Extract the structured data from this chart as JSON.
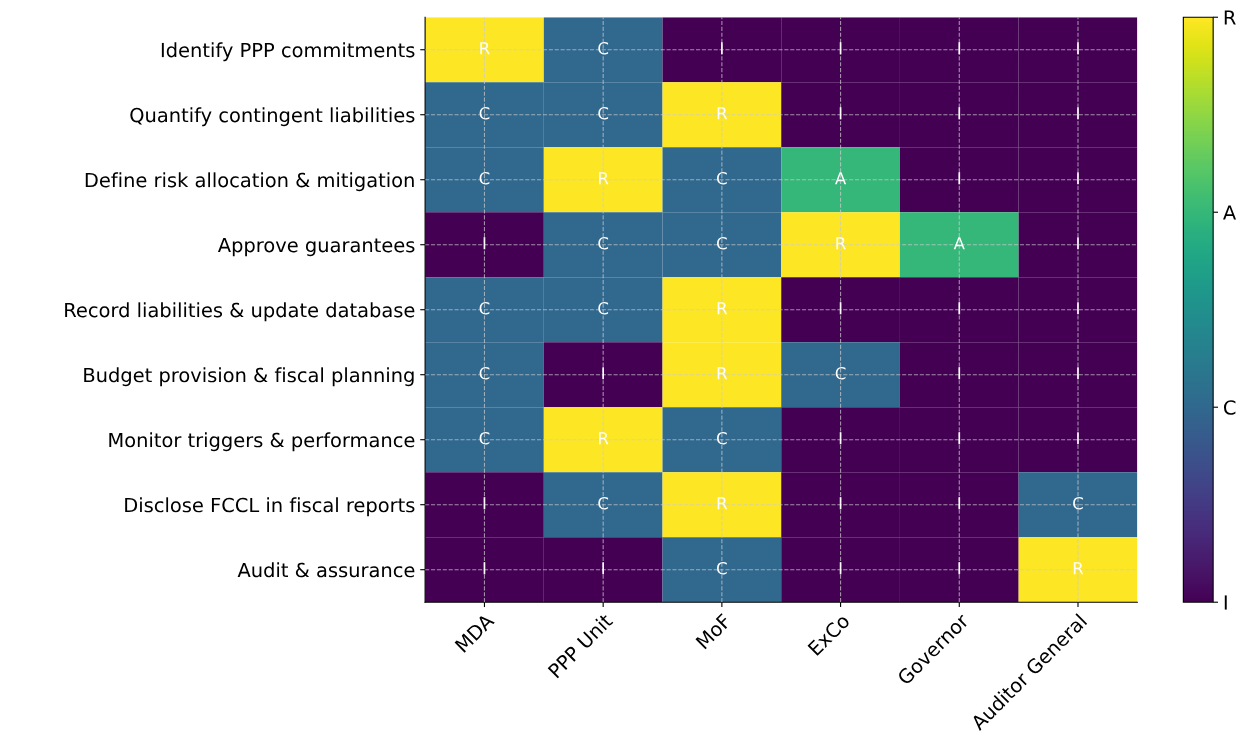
{
  "chart_data": {
    "type": "heatmap",
    "categories": [
      "MDA",
      "PPP Unit",
      "MoF",
      "ExCo",
      "Governor",
      "Auditor General"
    ],
    "y_categories": [
      "Identify PPP commitments",
      "Quantify contingent liabilities",
      "Define risk allocation & mitigation",
      "Approve guarantees",
      "Record liabilities & update database",
      "Budget provision & fiscal planning",
      "Monitor triggers & performance",
      "Disclose FCCL in fiscal reports",
      "Audit & assurance"
    ],
    "cells": [
      [
        3,
        1,
        0,
        0,
        0,
        0
      ],
      [
        1,
        1,
        3,
        0,
        0,
        0
      ],
      [
        1,
        3,
        1,
        2,
        0,
        0
      ],
      [
        0,
        1,
        1,
        3,
        2,
        0
      ],
      [
        1,
        1,
        3,
        0,
        0,
        0
      ],
      [
        1,
        0,
        3,
        1,
        0,
        0
      ],
      [
        1,
        3,
        1,
        0,
        0,
        0
      ],
      [
        0,
        1,
        3,
        0,
        0,
        1
      ],
      [
        0,
        0,
        1,
        0,
        0,
        3
      ]
    ],
    "cell_labels": [
      [
        "R",
        "C",
        "I",
        "I",
        "I",
        "I"
      ],
      [
        "C",
        "C",
        "R",
        "I",
        "I",
        "I"
      ],
      [
        "C",
        "R",
        "C",
        "A",
        "I",
        "I"
      ],
      [
        "I",
        "C",
        "C",
        "R",
        "A",
        "I"
      ],
      [
        "C",
        "C",
        "R",
        "I",
        "I",
        "I"
      ],
      [
        "C",
        "I",
        "R",
        "C",
        "I",
        "I"
      ],
      [
        "C",
        "R",
        "C",
        "I",
        "I",
        "I"
      ],
      [
        "I",
        "C",
        "R",
        "I",
        "I",
        "C"
      ],
      [
        "I",
        "I",
        "C",
        "I",
        "I",
        "R"
      ]
    ],
    "clim": [
      0,
      3
    ],
    "cticks": [
      {
        "value": 0,
        "label": "I"
      },
      {
        "value": 1,
        "label": "C"
      },
      {
        "value": 2,
        "label": "A"
      },
      {
        "value": 3,
        "label": "R"
      }
    ],
    "grid": true
  }
}
